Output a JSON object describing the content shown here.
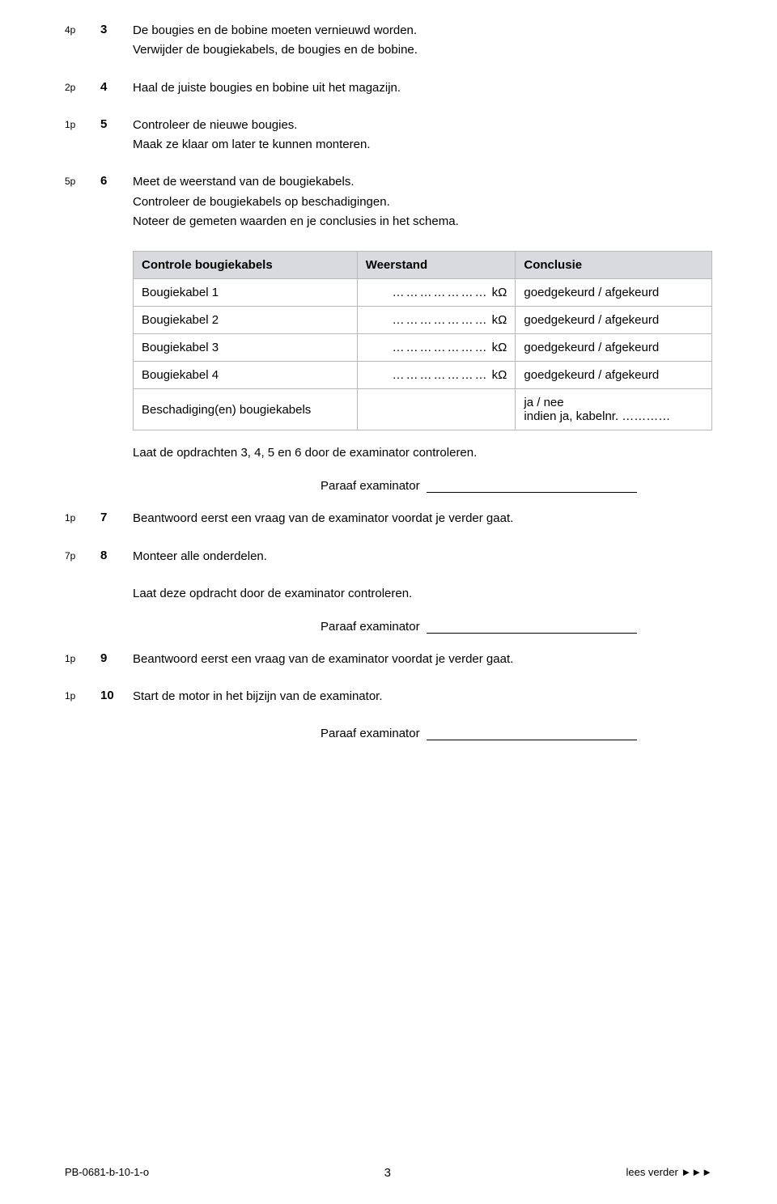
{
  "items": [
    {
      "points": "4p",
      "num": "3",
      "lines": [
        "De bougies en de bobine moeten vernieuwd worden.",
        "Verwijder de bougiekabels, de bougies en de bobine."
      ]
    },
    {
      "points": "2p",
      "num": "4",
      "lines": [
        "Haal de juiste bougies en bobine uit het magazijn."
      ]
    },
    {
      "points": "1p",
      "num": "5",
      "lines": [
        "Controleer de nieuwe bougies.",
        "Maak ze klaar om later te kunnen monteren."
      ]
    },
    {
      "points": "5p",
      "num": "6",
      "lines": [
        "Meet de weerstand van de bougiekabels.",
        "Controleer de bougiekabels op beschadigingen.",
        "Noteer de gemeten waarden en je conclusies in het schema."
      ]
    }
  ],
  "table": {
    "headers": [
      "Controle bougiekabels",
      "Weerstand",
      "Conclusie"
    ],
    "unit": "kΩ",
    "rows": [
      {
        "label": "Bougiekabel 1",
        "conclusion": "goedgekeurd / afgekeurd"
      },
      {
        "label": "Bougiekabel 2",
        "conclusion": "goedgekeurd / afgekeurd"
      },
      {
        "label": "Bougiekabel 3",
        "conclusion": "goedgekeurd / afgekeurd"
      },
      {
        "label": "Bougiekabel 4",
        "conclusion": "goedgekeurd / afgekeurd"
      }
    ],
    "last": {
      "label": "Beschadiging(en) bougiekabels",
      "conclusion1": "ja / nee",
      "conclusion2": "indien ja, kabelnr. …………"
    },
    "header_bg": "#d9d9e0",
    "border_color": "#b8b8b8"
  },
  "after_table_line": "Laat de opdrachten 3, 4, 5 en 6 door de examinator controleren.",
  "paraaf_label": "Paraaf examinator",
  "items2": [
    {
      "points": "1p",
      "num": "7",
      "lines": [
        "Beantwoord eerst een vraag van de examinator voordat je verder gaat."
      ]
    },
    {
      "points": "7p",
      "num": "8",
      "lines": [
        "Monteer alle onderdelen."
      ]
    }
  ],
  "after_8_line": "Laat deze opdracht door de examinator controleren.",
  "items3": [
    {
      "points": "1p",
      "num": "9",
      "lines": [
        "Beantwoord eerst een vraag van de examinator voordat je verder gaat."
      ]
    },
    {
      "points": "1p",
      "num": "10",
      "lines": [
        "Start de motor in het bijzijn van de examinator."
      ]
    }
  ],
  "footer": {
    "left": "PB-0681-b-10-1-o",
    "page": "3",
    "right": "lees verder ►►►"
  }
}
